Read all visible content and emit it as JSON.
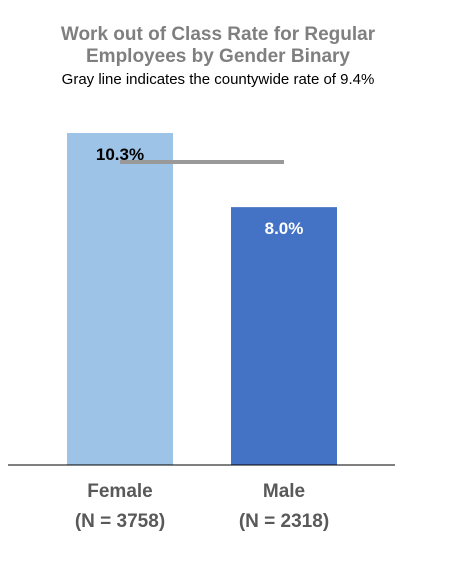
{
  "chart_data": {
    "type": "bar",
    "title_lines": [
      "Work out of Class Rate for Regular",
      "Employees by Gender Binary"
    ],
    "subtitle": "Gray line indicates the countywide rate of 9.4%",
    "categories": [
      "Female",
      "Male"
    ],
    "category_counts": [
      "(N = 3758)",
      "(N = 2318)"
    ],
    "values": [
      10.3,
      8.0
    ],
    "data_labels": [
      "10.3%",
      "8.0%"
    ],
    "reference_line": 9.4,
    "ylim": [
      0,
      10.5
    ],
    "grid": false,
    "legend": "none",
    "colors": {
      "bars": [
        "#9dc3e6",
        "#4472c4"
      ],
      "data_labels": [
        "#000000",
        "#ffffff"
      ],
      "reference_line": "#999999",
      "axis": "#000000",
      "title": "#7f7f7f"
    }
  }
}
